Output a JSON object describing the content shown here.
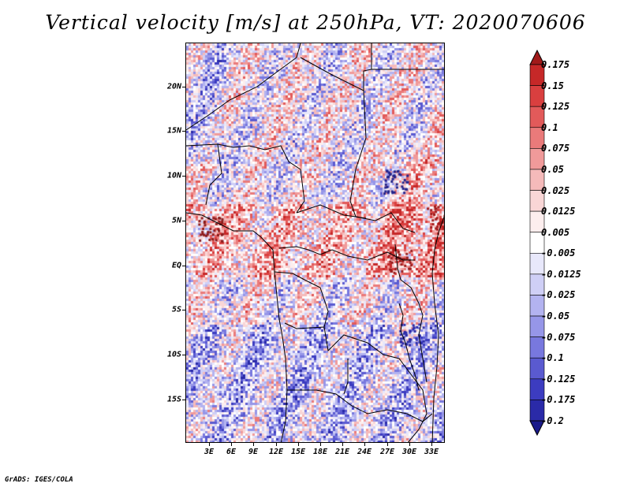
{
  "title": "Vertical velocity [m/s] at 250hPa, VT: 2020070606",
  "footer": "GrADS: IGES/COLA",
  "map": {
    "lat_labels": [
      "20N",
      "15N",
      "10N",
      "5N",
      "EQ",
      "5S",
      "10S",
      "15S"
    ],
    "lon_labels": [
      "3E",
      "6E",
      "9E",
      "12E",
      "15E",
      "18E",
      "21E",
      "24E",
      "27E",
      "30E",
      "33E"
    ]
  },
  "colorbar": {
    "labels": [
      "0.175",
      "0.15",
      "0.125",
      "0.1",
      "0.075",
      "0.05",
      "0.025",
      "0.0125",
      "0.005",
      "-0.005",
      "-0.0125",
      "-0.025",
      "-0.05",
      "-0.075",
      "-0.1",
      "-0.125",
      "-0.175",
      "-0.2"
    ],
    "colors": [
      "#a11a1a",
      "#c62828",
      "#d93f3f",
      "#e25a5a",
      "#ea7a7a",
      "#f09a9a",
      "#f5baba",
      "#f9d6d6",
      "#fdeeee",
      "#ffffff",
      "#e8e8fb",
      "#cfcff6",
      "#b3b3f0",
      "#9696e8",
      "#7878de",
      "#5a5ad0",
      "#3c3cc0",
      "#2a2aa8",
      "#1a1a8a"
    ]
  }
}
